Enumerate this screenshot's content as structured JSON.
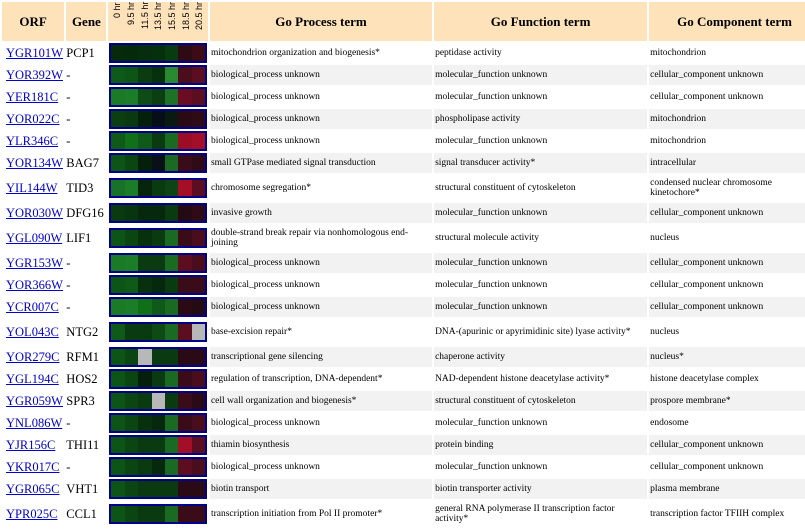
{
  "headers": {
    "orf": "ORF",
    "gene": "Gene",
    "timepoints": [
      "0 hr",
      "9.5 hr",
      "11.5 hr",
      "13.5 hr",
      "15.5 hr",
      "18.5 hr",
      "20.5 hr"
    ],
    "process": "Go Process term",
    "function": "Go Function term",
    "component": "Go Component term"
  },
  "rows": [
    {
      "orf": "YGR101W",
      "gene": "PCP1",
      "heat": [
        "#062a0a",
        "#052a0a",
        "#062d0d",
        "#04300c",
        "#083b10",
        "#2e0a14",
        "#3d0b16"
      ],
      "process": "mitochondrion organization and biogenesis*",
      "function": "peptidase activity",
      "component": "mitochondrion"
    },
    {
      "orf": "YOR392W",
      "gene": "-",
      "heat": [
        "#0e5b19",
        "#0d5517",
        "#0a3c10",
        "#07300c",
        "#2a8a32",
        "#4a0d1b",
        "#5a0e20"
      ],
      "process": "biological_process unknown",
      "function": "molecular_function unknown",
      "component": "cellular_component unknown"
    },
    {
      "orf": "YER181C",
      "gene": "-",
      "heat": [
        "#1a7a26",
        "#1c7d28",
        "#0f4c15",
        "#0b3f11",
        "#1d7226",
        "#6a0c22",
        "#5a0e20"
      ],
      "process": "biological_process unknown",
      "function": "molecular_function unknown",
      "component": "cellular_component unknown"
    },
    {
      "orf": "YOR022C",
      "gene": "-",
      "heat": [
        "#0b3e10",
        "#0a3810",
        "#05200a",
        "#060f18",
        "#0a1a10",
        "#2a0a14",
        "#2f0b16"
      ],
      "process": "biological_process unknown",
      "function": "phospholipase activity",
      "component": "mitochondrion"
    },
    {
      "orf": "YLR346C",
      "gene": "-",
      "heat": [
        "#0f5a18",
        "#107018",
        "#0f5a18",
        "#0a3a10",
        "#1b6a22",
        "#9a0d24",
        "#a40f28"
      ],
      "process": "biological_process unknown",
      "function": "molecular_function unknown",
      "component": "mitochondrion"
    },
    {
      "orf": "YOR134W",
      "gene": "BAG7",
      "heat": [
        "#0d5417",
        "#0a4512",
        "#05200a",
        "#081018",
        "#1a6a24",
        "#3a0c18",
        "#2f0b16"
      ],
      "process": "small GTPase mediated signal transduction",
      "function": "signal transducer activity*",
      "component": "intracellular"
    },
    {
      "orf": "YIL144W",
      "gene": "TID3",
      "heat": [
        "#18722a",
        "#1c7d28",
        "#07240c",
        "#0a3a10",
        "#0e4415",
        "#a40f28",
        "#5a0e20"
      ],
      "process": "chromosome segregation*",
      "function": "structural constituent of cytoskeleton",
      "component": "condensed nuclear chromosome kinetochore*",
      "two": true
    },
    {
      "orf": "YOR030W",
      "gene": "DFG16",
      "heat": [
        "#0a3a10",
        "#083410",
        "#06280c",
        "#06280c",
        "#0a3a10",
        "#240a12",
        "#2f0b16"
      ],
      "process": "invasive growth",
      "function": "molecular_function unknown",
      "component": "cellular_component unknown"
    },
    {
      "orf": "YGL090W",
      "gene": "LIF1",
      "heat": [
        "#0d5417",
        "#0a4512",
        "#07300c",
        "#0a3a10",
        "#1a6a24",
        "#3a0c18",
        "#4a0d1b"
      ],
      "process": "double-strand break repair via nonhomologous end-joining",
      "function": "structural molecule activity",
      "component": "nucleus",
      "two": true
    },
    {
      "orf": "YGR153W",
      "gene": "-",
      "heat": [
        "#1a7a26",
        "#1c7d28",
        "#0a3a10",
        "#0a3a10",
        "#1b6a22",
        "#5a0e20",
        "#4a0d1b"
      ],
      "process": "biological_process unknown",
      "function": "molecular_function unknown",
      "component": "cellular_component unknown"
    },
    {
      "orf": "YOR366W",
      "gene": "-",
      "heat": [
        "#0d5417",
        "#0f5a18",
        "#07300c",
        "#06280c",
        "#0a3a10",
        "#3a0c18",
        "#3a0c18"
      ],
      "process": "biological_process unknown",
      "function": "molecular_function unknown",
      "component": "cellular_component unknown"
    },
    {
      "orf": "YCR007C",
      "gene": "-",
      "heat": [
        "#1a7a26",
        "#1c7d28",
        "#107018",
        "#0f5a18",
        "#1b6a22",
        "#2a0a14",
        "#240a12"
      ],
      "process": "biological_process unknown",
      "function": "molecular_function unknown",
      "component": "cellular_component unknown"
    },
    {
      "orf": "YOL043C",
      "gene": "NTG2",
      "heat": [
        "#0f5a18",
        "#0a3a10",
        "#0a3a10",
        "#0d4a14",
        "#1a6a24",
        "#5a0e20",
        "#b8b8b8"
      ],
      "process": "base-excision repair*",
      "function": "DNA-(apurinic or apyrimidinic site) lyase activity*",
      "component": "nucleus",
      "two": true
    },
    {
      "orf": "YOR279C",
      "gene": "RFM1",
      "heat": [
        "#0d5417",
        "#0a4512",
        "#b8b8b8",
        "#0a3a10",
        "#0a3a10",
        "#2a0a14",
        "#2a0a14"
      ],
      "process": "transcriptional gene silencing",
      "function": "chaperone activity",
      "component": "nucleus*"
    },
    {
      "orf": "YGL194C",
      "gene": "HOS2",
      "heat": [
        "#0d5417",
        "#0a4512",
        "#05200a",
        "#0a3a10",
        "#1b6a22",
        "#3a0c18",
        "#4a0d1b"
      ],
      "process": "regulation of transcription, DNA-dependent*",
      "function": "NAD-dependent histone deacetylase activity*",
      "component": "histone deacetylase complex"
    },
    {
      "orf": "YGR059W",
      "gene": "SPR3",
      "heat": [
        "#0d5417",
        "#0a4512",
        "#0a3a10",
        "#b8b8b8",
        "#0a3a10",
        "#3a0c18",
        "#2a0a14"
      ],
      "process": "cell wall organization and biogenesis*",
      "function": "structural constituent of cytoskeleton",
      "component": "prospore membrane*"
    },
    {
      "orf": "YNL086W",
      "gene": "-",
      "heat": [
        "#0d5417",
        "#0a4512",
        "#07300c",
        "#06280c",
        "#1a6a24",
        "#3a0c18",
        "#4a0d1b"
      ],
      "process": "biological_process unknown",
      "function": "molecular_function unknown",
      "component": "endosome"
    },
    {
      "orf": "YJR156C",
      "gene": "THI11",
      "heat": [
        "#0d5417",
        "#0a4512",
        "#0a3a10",
        "#0a3a10",
        "#1a6a24",
        "#a40f28",
        "#5a0e20"
      ],
      "process": "thiamin biosynthesis",
      "function": "protein binding",
      "component": "cellular_component unknown"
    },
    {
      "orf": "YKR017C",
      "gene": "-",
      "heat": [
        "#0d5417",
        "#0a4512",
        "#0a3a10",
        "#06280c",
        "#1a6a24",
        "#5a0e20",
        "#4a0d1b"
      ],
      "process": "biological_process unknown",
      "function": "molecular_function unknown",
      "component": "cellular_component unknown"
    },
    {
      "orf": "YGR065C",
      "gene": "VHT1",
      "heat": [
        "#0d5417",
        "#0a4512",
        "#0a3a10",
        "#0a3a10",
        "#0a3a10",
        "#2a0a14",
        "#2a0a14"
      ],
      "process": "biotin transport",
      "function": "biotin transporter activity",
      "component": "plasma membrane"
    },
    {
      "orf": "YPR025C",
      "gene": "CCL1",
      "heat": [
        "#0d5417",
        "#0a4512",
        "#0a3a10",
        "#0a3a10",
        "#1a6a24",
        "#3a0c18",
        "#3a0c18"
      ],
      "process": "transcription initiation from Pol II promoter*",
      "function": "general RNA polymerase II transcription factor activity*",
      "component": "transcription factor TFIIH complex",
      "two": true
    }
  ]
}
